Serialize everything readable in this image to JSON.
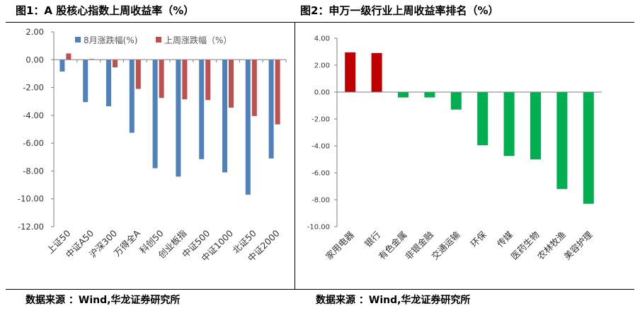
{
  "chart_data": [
    {
      "type": "bar",
      "title": "图1：A 股核心指数上周收益率（%）",
      "categories": [
        "上证50",
        "中证A50",
        "沪深300",
        "万得全A",
        "科创50",
        "创业板指",
        "中证500",
        "中证1000",
        "北证50",
        "中证2000"
      ],
      "series": [
        {
          "name": "8月涨跌幅(%)",
          "color": "#4f81bd",
          "values": [
            -0.85,
            -3.05,
            -3.35,
            -5.25,
            -7.8,
            -8.4,
            -7.15,
            -8.1,
            -9.7,
            -7.1
          ]
        },
        {
          "name": "上周涨跌幅（%）",
          "color": "#c0504d",
          "values": [
            0.45,
            0.05,
            -0.55,
            -2.1,
            -2.75,
            -2.85,
            -2.9,
            -3.45,
            -4.05,
            -4.65
          ]
        }
      ],
      "ylim": [
        -12,
        2
      ],
      "yticks": [
        "2.00",
        "0.00",
        "-2.00",
        "-4.00",
        "-6.00",
        "-8.00",
        "-10.00",
        "-12.00"
      ],
      "legend": "top-right",
      "grid": false
    },
    {
      "type": "bar",
      "title": "图2：申万一级行业上周收益率排名（%）",
      "categories": [
        "家用电器",
        "银行",
        "有色金属",
        "非银金融",
        "交通运输",
        "环保",
        "传媒",
        "医药生物",
        "农林牧渔",
        "美容护理"
      ],
      "values": [
        2.95,
        2.9,
        -0.4,
        -0.4,
        -1.3,
        -3.95,
        -4.75,
        -5.0,
        -7.2,
        -8.3
      ],
      "colors": {
        "positive": "#c00000",
        "negative": "#00b050"
      },
      "ylim": [
        -10,
        4
      ],
      "yticks": [
        "4.00",
        "2.00",
        "0.00",
        "-2.00",
        "-4.00",
        "-6.00",
        "-8.00",
        "-10.00"
      ],
      "grid": false
    }
  ],
  "sources": {
    "left": "数据来源 ：Wind,华龙证券研究所",
    "right": "数据来源 ：Wind,华龙证券研究所"
  }
}
